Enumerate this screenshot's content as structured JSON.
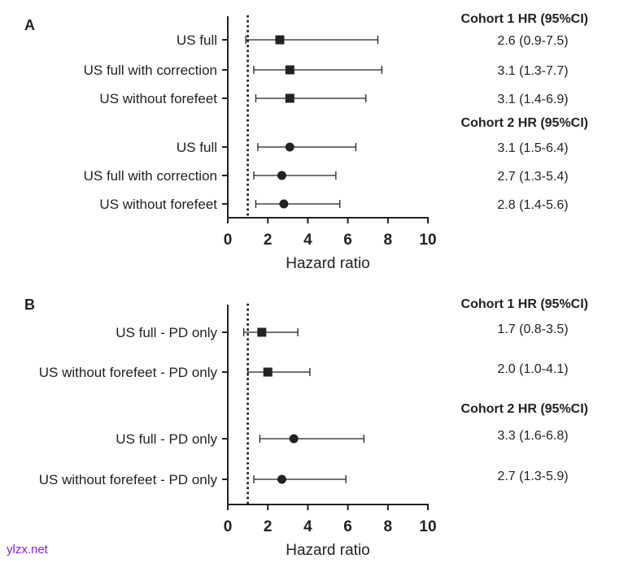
{
  "chart_data": [
    {
      "type": "forest",
      "panel_label": "A",
      "xlabel": "Hazard ratio",
      "xlim": [
        0,
        10
      ],
      "xticks": [
        "0",
        "2",
        "4",
        "6",
        "8",
        "10"
      ],
      "reference_line": 1,
      "groups": [
        {
          "header": "Cohort 1 HR (95%CI)",
          "marker": "square",
          "rows": [
            {
              "label": "US full",
              "hr": 2.6,
              "lo": 0.9,
              "hi": 7.5,
              "text": "2.6 (0.9-7.5)"
            },
            {
              "label": "US full with correction",
              "hr": 3.1,
              "lo": 1.3,
              "hi": 7.7,
              "text": "3.1 (1.3-7.7)"
            },
            {
              "label": "US without forefeet",
              "hr": 3.1,
              "lo": 1.4,
              "hi": 6.9,
              "text": "3.1 (1.4-6.9)"
            }
          ]
        },
        {
          "header": "Cohort 2 HR (95%CI)",
          "marker": "circle",
          "rows": [
            {
              "label": "US full",
              "hr": 3.1,
              "lo": 1.5,
              "hi": 6.4,
              "text": "3.1 (1.5-6.4)"
            },
            {
              "label": "US full with correction",
              "hr": 2.7,
              "lo": 1.3,
              "hi": 5.4,
              "text": "2.7 (1.3-5.4)"
            },
            {
              "label": "US without forefeet",
              "hr": 2.8,
              "lo": 1.4,
              "hi": 5.6,
              "text": "2.8 (1.4-5.6)"
            }
          ]
        }
      ]
    },
    {
      "type": "forest",
      "panel_label": "B",
      "xlabel": "Hazard ratio",
      "xlim": [
        0,
        10
      ],
      "xticks": [
        "0",
        "2",
        "4",
        "6",
        "8",
        "10"
      ],
      "reference_line": 1,
      "groups": [
        {
          "header": "Cohort 1 HR (95%CI)",
          "marker": "square",
          "rows": [
            {
              "label": "US full - PD only",
              "hr": 1.7,
              "lo": 0.8,
              "hi": 3.5,
              "text": "1.7 (0.8-3.5)"
            },
            {
              "label": "US without forefeet - PD only",
              "hr": 2.0,
              "lo": 1.0,
              "hi": 4.1,
              "text": "2.0 (1.0-4.1)"
            }
          ]
        },
        {
          "header": "Cohort 2 HR (95%CI)",
          "marker": "circle",
          "rows": [
            {
              "label": "US full - PD only",
              "hr": 3.3,
              "lo": 1.6,
              "hi": 6.8,
              "text": "3.3 (1.6-6.8)"
            },
            {
              "label": "US without forefeet - PD only",
              "hr": 2.7,
              "lo": 1.3,
              "hi": 5.9,
              "text": "2.7 (1.3-5.9)"
            }
          ]
        }
      ]
    }
  ],
  "watermark": "ylzx.net",
  "colors": {
    "ink": "#222222",
    "watermark": "#8a1fd0"
  }
}
